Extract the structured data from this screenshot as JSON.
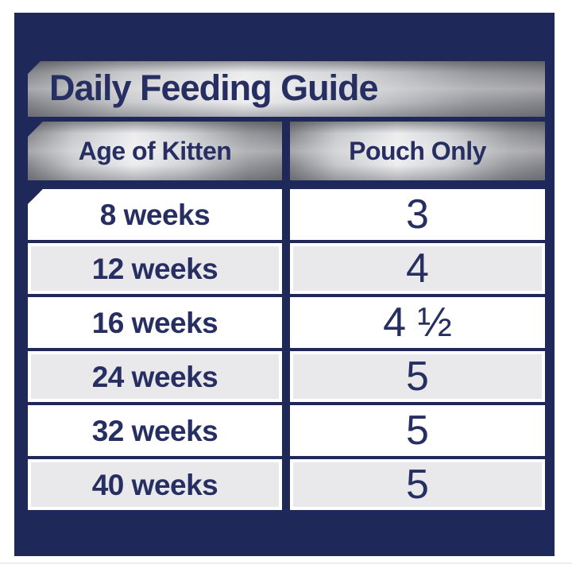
{
  "title": "Daily Feeding Guide",
  "colors": {
    "panel_navy": "#1f2959",
    "text_navy": "#272f62",
    "row_alt_gray": "#e9e9ec",
    "row_white": "#ffffff",
    "silver_dark": "#85868a",
    "silver_light": "#ededee"
  },
  "table": {
    "columns": [
      "Age of Kitten",
      "Pouch Only"
    ],
    "rows": [
      {
        "age": "8 weeks",
        "pouches": "3"
      },
      {
        "age": "12 weeks",
        "pouches": "4"
      },
      {
        "age": "16 weeks",
        "pouches": "4 ½"
      },
      {
        "age": "24 weeks",
        "pouches": "5"
      },
      {
        "age": "32 weeks",
        "pouches": "5"
      },
      {
        "age": "40 weeks",
        "pouches": "5"
      }
    ]
  },
  "chart_data": {
    "type": "table",
    "title": "Daily Feeding Guide",
    "columns": [
      "Age of Kitten",
      "Pouch Only"
    ],
    "categories": [
      "8 weeks",
      "12 weeks",
      "16 weeks",
      "24 weeks",
      "32 weeks",
      "40 weeks"
    ],
    "values": [
      3,
      4,
      4.5,
      5,
      5,
      5
    ],
    "value_labels": [
      "3",
      "4",
      "4 ½",
      "5",
      "5",
      "5"
    ],
    "xlabel": "Age of Kitten",
    "ylabel": "Pouch Only"
  }
}
